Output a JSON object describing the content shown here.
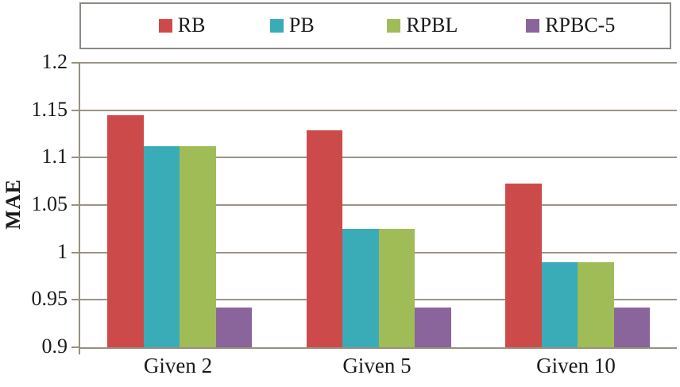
{
  "chart_data": {
    "type": "bar",
    "title": "",
    "xlabel": "",
    "ylabel": "MAE",
    "categories": [
      "Given 2",
      "Given 5",
      "Given 10"
    ],
    "series": [
      {
        "name": "RB",
        "color": "#cd4a4a",
        "values": [
          1.145,
          1.129,
          1.073
        ]
      },
      {
        "name": "PB",
        "color": "#3aacb8",
        "values": [
          1.112,
          1.025,
          0.99
        ]
      },
      {
        "name": "RPBL",
        "color": "#a0bc56",
        "values": [
          1.112,
          1.025,
          0.99
        ]
      },
      {
        "name": "RPBC-5",
        "color": "#8a659b",
        "values": [
          0.942,
          0.942,
          0.942
        ]
      }
    ],
    "ylim": [
      0.9,
      1.2
    ],
    "ytick_step": 0.05,
    "ytick_labels": [
      "0.9",
      "0.95",
      "1",
      "1.05",
      "1.1",
      "1.15",
      "1.2"
    ],
    "grid": true,
    "legend_position": "top"
  },
  "styles": {
    "background": "#ffffff",
    "text_color": "#1a1a1a",
    "grid_color": "#9a9488",
    "axis_color": "#96917f",
    "legend_border": "#8a8a85"
  }
}
